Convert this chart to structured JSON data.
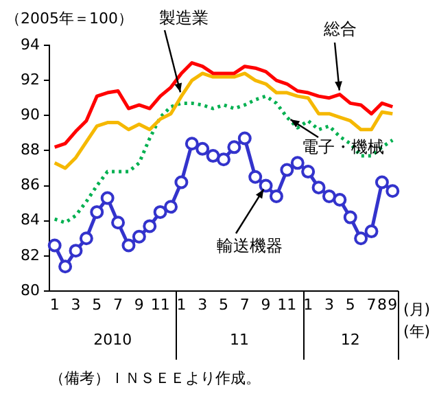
{
  "chart_data": {
    "type": "line",
    "ylabel": "（2005年＝100）",
    "xlabel": "(月)",
    "categories": [
      "1",
      null,
      "3",
      null,
      "5",
      null,
      "7",
      null,
      "9",
      null,
      "11",
      null,
      "1",
      null,
      "3",
      null,
      "5",
      null,
      "7",
      null,
      "9",
      null,
      "11",
      null,
      "1",
      null,
      "3",
      null,
      "5",
      null,
      "7",
      "8",
      "9"
    ],
    "ylim": [
      80,
      94
    ],
    "yticks": [
      80,
      82,
      84,
      86,
      88,
      90,
      92,
      94
    ],
    "grid": false,
    "legend": false,
    "series": [
      {
        "name": "総合",
        "color": "#ff0000",
        "line_style": "solid",
        "marker": "none",
        "values": [
          88.2,
          88.4,
          89.1,
          89.7,
          91.1,
          91.3,
          91.4,
          90.4,
          90.6,
          90.4,
          91.1,
          91.6,
          92.4,
          93.0,
          92.8,
          92.4,
          92.4,
          92.4,
          92.8,
          92.7,
          92.5,
          92.0,
          91.8,
          91.4,
          91.3,
          91.1,
          91.0,
          91.2,
          90.7,
          90.6,
          90.1,
          90.7,
          90.5
        ]
      },
      {
        "name": "製造業",
        "color": "#f5b800",
        "line_style": "solid",
        "marker": "none",
        "values": [
          87.3,
          87.0,
          87.6,
          88.5,
          89.4,
          89.6,
          89.6,
          89.2,
          89.5,
          89.2,
          89.8,
          90.1,
          91.1,
          92.0,
          92.4,
          92.2,
          92.2,
          92.2,
          92.4,
          92.0,
          91.8,
          91.3,
          91.3,
          91.1,
          91.0,
          90.1,
          90.1,
          89.9,
          89.7,
          89.2,
          89.2,
          90.2,
          90.1
        ]
      },
      {
        "name": "電子・機械",
        "color": "#00b050",
        "line_style": "dotted",
        "marker": "none",
        "values": [
          84.1,
          83.9,
          84.3,
          85.1,
          86.0,
          86.8,
          86.8,
          86.8,
          87.3,
          88.7,
          89.9,
          90.5,
          90.7,
          90.7,
          90.6,
          90.4,
          90.6,
          90.4,
          90.6,
          90.9,
          91.1,
          90.7,
          89.9,
          89.3,
          89.7,
          89.2,
          89.4,
          88.8,
          88.4,
          87.7,
          87.7,
          88.2,
          88.6
        ]
      },
      {
        "name": "輸送機器",
        "color": "#3333cc",
        "line_style": "solid",
        "marker": "circle",
        "values": [
          82.6,
          81.4,
          82.3,
          83.0,
          84.5,
          85.3,
          83.9,
          82.6,
          83.1,
          83.7,
          84.5,
          84.8,
          86.2,
          88.4,
          88.1,
          87.7,
          87.5,
          88.2,
          88.7,
          86.5,
          86.0,
          85.4,
          86.9,
          87.3,
          86.8,
          85.9,
          85.4,
          85.2,
          84.2,
          83.0,
          83.4,
          86.2,
          85.7
        ]
      }
    ],
    "annotations": [
      "(年)",
      "2010",
      "11",
      "12",
      "（備考）ＩＮＳＥＥより作成。"
    ]
  }
}
